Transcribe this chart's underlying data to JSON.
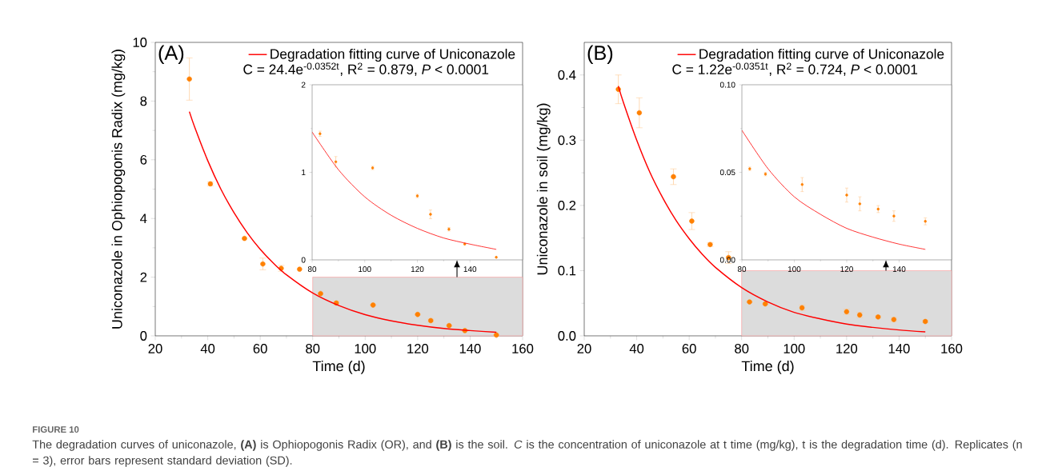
{
  "chart_data": [
    {
      "type": "scatter",
      "xlabel": "Time (d)",
      "ylabel": "Uniconazole in Ophiopogonis Radix (mg/kg)",
      "xlim": [
        20,
        160
      ],
      "ylim": [
        0,
        10
      ],
      "xticks": [
        20,
        40,
        60,
        80,
        100,
        120,
        140,
        160
      ],
      "yticks": [
        0,
        2,
        4,
        6,
        8,
        10
      ],
      "legend": "top right",
      "annotations": [
        "(A)",
        "C = 24.4e$^{-0.0352t}$, R$^{2}$ = 0.879, *P* < 0.0001",
        "FIGURE 10",
        "The degradation curves of uniconazole, **(A)** is Ophiopogonis Radix (OR), and **(B)** is the soil. *C* is the concentration of uniconazole at t time (mg/kg), t is the degradation time (d). Replicates (n = 3), error bars represent standard deviation (SD)."
      ],
      "bands": [
        {
          "axis": "x",
          "from": 80,
          "to": 160,
          "color": "#dcdcdc"
        }
      ],
      "series": [
        {
          "color": "#ff8000",
          "marker": "circle",
          "x": [
            33,
            41,
            54,
            61,
            68,
            75,
            83,
            89,
            103,
            120,
            125,
            132,
            138,
            150
          ],
          "values": [
            8.75,
            5.18,
            3.32,
            2.45,
            2.3,
            2.27,
            1.44,
            1.12,
            1.05,
            0.73,
            0.52,
            0.35,
            0.18,
            0.03
          ],
          "errors": [
            0.72,
            0.07,
            null,
            0.2,
            0.1,
            null,
            null,
            0.06,
            0.02,
            0.02,
            0.05,
            0.02,
            0.01,
            0.01
          ]
        },
        {
          "type": "line",
          "name": "Degradation fitting curve of Uniconazole",
          "color": "#ff0000",
          "marker": "none",
          "x": [
            33,
            35,
            40,
            45,
            50,
            55,
            60,
            65,
            70,
            80,
            90,
            100,
            110,
            120,
            130,
            140,
            150
          ],
          "values": [
            7.64,
            7.12,
            5.97,
            5.0,
            4.2,
            3.52,
            2.95,
            2.48,
            2.08,
            1.46,
            1.03,
            0.72,
            0.51,
            0.36,
            0.25,
            0.18,
            0.12
          ]
        }
      ]
    },
    {
      "type": "scatter",
      "xlim": [
        80,
        160
      ],
      "ylim": [
        0,
        2
      ],
      "xticks": [
        80,
        100,
        120,
        140
      ],
      "yticks": [
        0,
        1,
        2
      ],
      "series": [
        {
          "color": "#ff8000",
          "marker": "circle",
          "x": [
            83,
            89,
            103,
            120,
            125,
            132,
            138,
            150
          ],
          "values": [
            1.44,
            1.12,
            1.05,
            0.73,
            0.52,
            0.35,
            0.18,
            0.03
          ],
          "errors": [
            0.03,
            0.06,
            0.02,
            0.02,
            0.05,
            0.02,
            null,
            null
          ]
        },
        {
          "type": "line",
          "color": "#ff0000",
          "marker": "none",
          "x": [
            80,
            90,
            100,
            110,
            120,
            130,
            140,
            150
          ],
          "values": [
            1.46,
            1.03,
            0.72,
            0.51,
            0.36,
            0.25,
            0.18,
            0.12
          ]
        }
      ]
    },
    {
      "type": "scatter",
      "xlabel": "Time (d)",
      "ylabel": "Uniconazole in soil (mg/kg)",
      "xlim": [
        20,
        160
      ],
      "ylim": [
        0,
        0.45
      ],
      "xticks": [
        20,
        40,
        60,
        80,
        100,
        120,
        140,
        160
      ],
      "yticks": [
        {
          "value": 0,
          "label": "0.0"
        },
        0.1,
        0.2,
        0.3,
        0.4
      ],
      "legend": "top right",
      "annotations": [
        "(B)",
        "C = 1.22e$^{-0.0351t}$, R$^{2}$ = 0.724, *P* < 0.0001"
      ],
      "bands": [
        {
          "axis": "x",
          "from": 80,
          "to": 160,
          "color": "#dcdcdc"
        }
      ],
      "series": [
        {
          "color": "#ff8000",
          "marker": "circle",
          "x": [
            33,
            41,
            54,
            61,
            68,
            75,
            83,
            89,
            103,
            120,
            125,
            132,
            138,
            150
          ],
          "values": [
            0.378,
            0.342,
            0.244,
            0.176,
            0.14,
            0.12,
            0.052,
            0.049,
            0.043,
            0.037,
            0.032,
            0.029,
            0.025,
            0.022
          ],
          "errors": [
            0.022,
            0.023,
            0.012,
            0.013,
            0.003,
            0.009,
            0.001,
            0.001,
            0.004,
            0.004,
            0.004,
            0.002,
            0.003,
            0.002
          ]
        },
        {
          "type": "line",
          "name": "Degradation fitting curve of Uniconazole",
          "color": "#ff0000",
          "marker": "none",
          "x": [
            33,
            35,
            40,
            45,
            50,
            55,
            60,
            65,
            70,
            80,
            90,
            100,
            110,
            120,
            130,
            140,
            150
          ],
          "values": [
            0.383,
            0.357,
            0.3,
            0.251,
            0.211,
            0.177,
            0.149,
            0.125,
            0.105,
            0.074,
            0.052,
            0.036,
            0.026,
            0.018,
            0.013,
            0.009,
            0.006
          ]
        }
      ]
    },
    {
      "type": "scatter",
      "xlim": [
        80,
        160
      ],
      "ylim": [
        0,
        0.1
      ],
      "xticks": [
        80,
        100,
        120,
        140
      ],
      "yticks": [
        {
          "value": 0,
          "label": "0.00"
        },
        {
          "value": 0.05,
          "label": "0.05"
        },
        {
          "value": 0.1,
          "label": "0.10"
        }
      ],
      "series": [
        {
          "color": "#ff8000",
          "marker": "circle",
          "x": [
            83,
            89,
            103,
            120,
            125,
            132,
            138,
            150
          ],
          "values": [
            0.052,
            0.049,
            0.043,
            0.037,
            0.032,
            0.029,
            0.025,
            0.022
          ],
          "errors": [
            0.001,
            0.001,
            0.004,
            0.004,
            0.004,
            0.002,
            0.003,
            0.002
          ]
        },
        {
          "type": "line",
          "color": "#ff0000",
          "marker": "none",
          "x": [
            80,
            90,
            100,
            110,
            120,
            130,
            140,
            150
          ],
          "values": [
            0.074,
            0.052,
            0.036,
            0.026,
            0.018,
            0.013,
            0.009,
            0.006
          ]
        }
      ]
    }
  ]
}
